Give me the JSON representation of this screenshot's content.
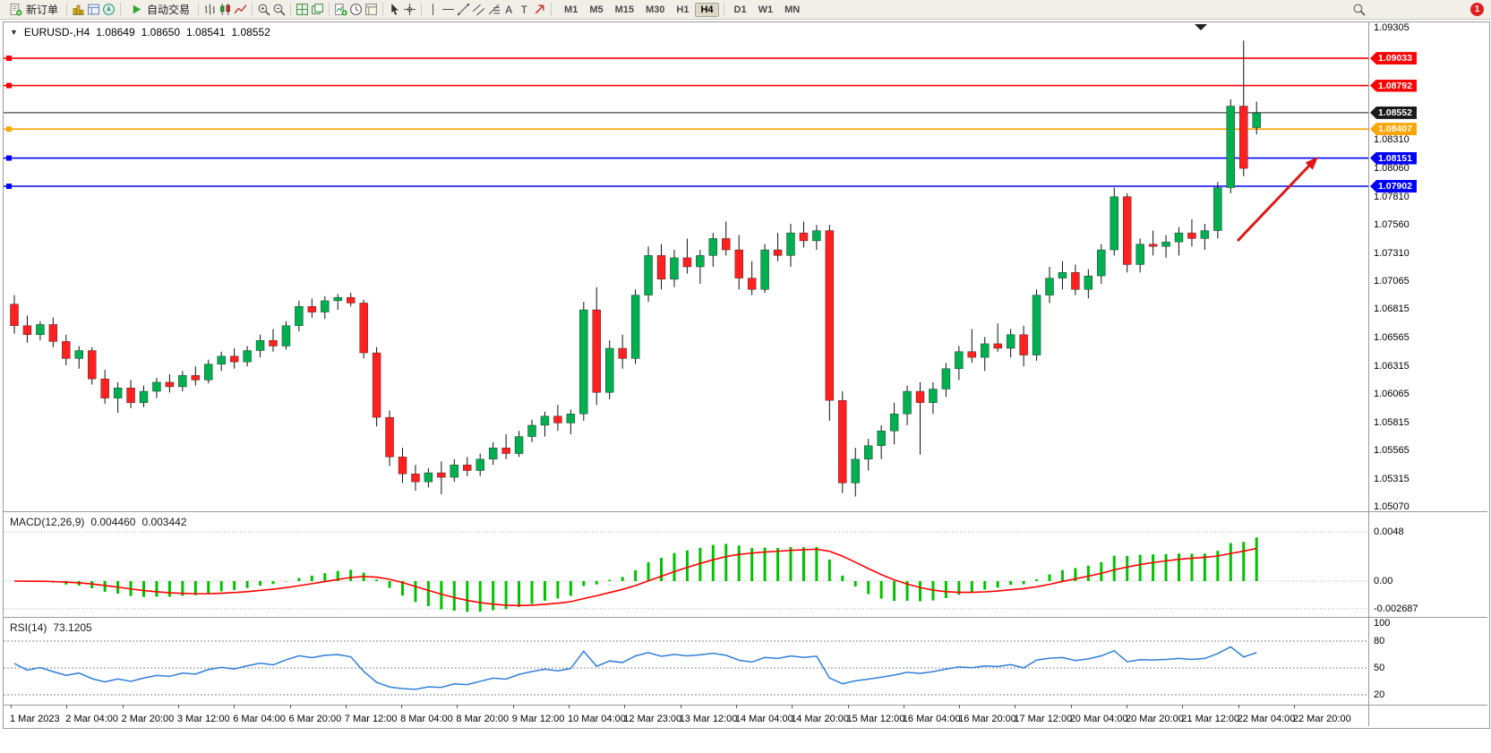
{
  "toolbar": {
    "new_order": "新订单",
    "auto_trading": "自动交易",
    "timeframes": [
      "M1",
      "M5",
      "M15",
      "M30",
      "H1",
      "H4",
      "D1",
      "W1",
      "MN"
    ],
    "active_timeframe": "H4",
    "notification_count": "1",
    "icon_names": [
      "new-order-icon",
      "market-watch-icon",
      "data-window-icon",
      "navigator-icon",
      "play-icon",
      "bar-chart-icon",
      "candlestick-chart-icon",
      "line-chart-icon",
      "zoom-in-icon",
      "zoom-out-icon",
      "tile-windows-icon",
      "cascade-windows-icon",
      "indicators-icon",
      "periods-icon",
      "templates-icon",
      "cursor-icon",
      "crosshair-icon",
      "vertical-line-icon",
      "horizontal-line-icon",
      "trendline-icon",
      "equidistant-channel-icon",
      "fibonacci-icon",
      "text-icon",
      "text-label-icon",
      "arrows-icon",
      "search-icon"
    ]
  },
  "chart": {
    "header": {
      "symbol_period": "EURUSD-,H4",
      "open": "1.08649",
      "high": "1.08650",
      "low": "1.08541",
      "close": "1.08552"
    },
    "price_axis_labels": [
      "1.09305",
      "1.08310",
      "1.08060",
      "1.07810",
      "1.07560",
      "1.07310",
      "1.07065",
      "1.06815",
      "1.06565",
      "1.06315",
      "1.06065",
      "1.05815",
      "1.05565",
      "1.05315",
      "1.05070"
    ],
    "time_axis_labels": [
      "1 Mar 2023",
      "2 Mar 04:00",
      "2 Mar 20:00",
      "3 Mar 12:00",
      "6 Mar 04:00",
      "6 Mar 20:00",
      "7 Mar 12:00",
      "8 Mar 04:00",
      "8 Mar 20:00",
      "9 Mar 12:00",
      "10 Mar 04:00",
      "12 Mar 23:00",
      "13 Mar 12:00",
      "14 Mar 04:00",
      "14 Mar 20:00",
      "15 Mar 12:00",
      "16 Mar 04:00",
      "16 Mar 20:00",
      "17 Mar 12:00",
      "20 Mar 04:00",
      "20 Mar 20:00",
      "21 Mar 12:00",
      "22 Mar 04:00",
      "22 Mar 20:00"
    ],
    "horizontal_lines": [
      {
        "price": 1.09033,
        "label": "1.09033",
        "color": "#ff0000",
        "type": "resistance"
      },
      {
        "price": 1.08792,
        "label": "1.08792",
        "color": "#ff0000",
        "type": "resistance"
      },
      {
        "price": 1.08552,
        "label": "1.08552",
        "color": "#1a1a1a",
        "type": "bid"
      },
      {
        "price": 1.08407,
        "label": "1.08407",
        "color": "#ffa500",
        "type": "level"
      },
      {
        "price": 1.08151,
        "label": "1.08151",
        "color": "#0000ff",
        "type": "support"
      },
      {
        "price": 1.07902,
        "label": "1.07902",
        "color": "#0000ff",
        "type": "support"
      }
    ]
  },
  "chart_data": {
    "type": "candlestick",
    "title": "EURUSD H4",
    "price_range": [
      1.0503,
      1.0935
    ],
    "colors": {
      "bull": "#00b050",
      "bear": "#ff2020",
      "wick": "#111111"
    },
    "ohlc": [
      [
        1.0686,
        1.0694,
        1.066,
        1.0667
      ],
      [
        1.0667,
        1.0676,
        1.0652,
        1.0659
      ],
      [
        1.0659,
        1.0671,
        1.0654,
        1.0668
      ],
      [
        1.0668,
        1.0674,
        1.0648,
        1.0653
      ],
      [
        1.0653,
        1.0659,
        1.0632,
        1.0638
      ],
      [
        1.0638,
        1.0649,
        1.0629,
        1.0645
      ],
      [
        1.0645,
        1.0648,
        1.0615,
        1.062
      ],
      [
        1.062,
        1.0628,
        1.0598,
        1.0603
      ],
      [
        1.0603,
        1.0617,
        1.059,
        1.0612
      ],
      [
        1.0612,
        1.0619,
        1.0594,
        1.0599
      ],
      [
        1.0599,
        1.0614,
        1.0595,
        1.0609
      ],
      [
        1.0609,
        1.0621,
        1.0603,
        1.0617
      ],
      [
        1.0617,
        1.0624,
        1.0608,
        1.0613
      ],
      [
        1.0613,
        1.0627,
        1.0609,
        1.0623
      ],
      [
        1.0623,
        1.0631,
        1.0614,
        1.0619
      ],
      [
        1.0619,
        1.0637,
        1.0616,
        1.0633
      ],
      [
        1.0633,
        1.0644,
        1.0627,
        1.064
      ],
      [
        1.064,
        1.0647,
        1.0629,
        1.0635
      ],
      [
        1.0635,
        1.0649,
        1.0631,
        1.0645
      ],
      [
        1.0645,
        1.0659,
        1.0639,
        1.0654
      ],
      [
        1.0654,
        1.0664,
        1.0644,
        1.0649
      ],
      [
        1.0649,
        1.0671,
        1.0646,
        1.0667
      ],
      [
        1.0667,
        1.0689,
        1.0662,
        1.0684
      ],
      [
        1.0684,
        1.0691,
        1.0674,
        1.0679
      ],
      [
        1.0679,
        1.0693,
        1.0673,
        1.0689
      ],
      [
        1.0689,
        1.0695,
        1.0681,
        1.0692
      ],
      [
        1.0692,
        1.0696,
        1.0684,
        1.0687
      ],
      [
        1.0687,
        1.069,
        1.0638,
        1.0643
      ],
      [
        1.0643,
        1.0648,
        1.0578,
        1.0586
      ],
      [
        1.0586,
        1.0592,
        1.0543,
        1.0551
      ],
      [
        1.0551,
        1.0559,
        1.0528,
        1.0536
      ],
      [
        1.0536,
        1.0544,
        1.0521,
        1.0529
      ],
      [
        1.0529,
        1.0541,
        1.0524,
        1.0537
      ],
      [
        1.0537,
        1.0547,
        1.0518,
        1.0533
      ],
      [
        1.0533,
        1.0549,
        1.0529,
        1.0544
      ],
      [
        1.0544,
        1.0551,
        1.0534,
        1.0539
      ],
      [
        1.0539,
        1.0554,
        1.0534,
        1.0549
      ],
      [
        1.0549,
        1.0564,
        1.0544,
        1.0559
      ],
      [
        1.0559,
        1.0571,
        1.0549,
        1.0554
      ],
      [
        1.0554,
        1.0574,
        1.0551,
        1.0569
      ],
      [
        1.0569,
        1.0584,
        1.0564,
        1.0579
      ],
      [
        1.0579,
        1.0591,
        1.0569,
        1.0587
      ],
      [
        1.0587,
        1.0597,
        1.0574,
        1.0581
      ],
      [
        1.0581,
        1.0593,
        1.0571,
        1.0589
      ],
      [
        1.0589,
        1.0688,
        1.0583,
        1.0681
      ],
      [
        1.0681,
        1.0701,
        1.0597,
        1.0608
      ],
      [
        1.0608,
        1.0654,
        1.0602,
        1.0647
      ],
      [
        1.0647,
        1.0659,
        1.0629,
        1.0638
      ],
      [
        1.0638,
        1.0699,
        1.0633,
        1.0694
      ],
      [
        1.0694,
        1.0737,
        1.0688,
        1.0729
      ],
      [
        1.0729,
        1.0739,
        1.0699,
        1.0708
      ],
      [
        1.0708,
        1.0734,
        1.0701,
        1.0727
      ],
      [
        1.0727,
        1.0744,
        1.0713,
        1.0719
      ],
      [
        1.0719,
        1.0734,
        1.0704,
        1.0729
      ],
      [
        1.0729,
        1.0749,
        1.0719,
        1.0744
      ],
      [
        1.0744,
        1.0759,
        1.0729,
        1.0734
      ],
      [
        1.0734,
        1.0747,
        1.0699,
        1.0709
      ],
      [
        1.0709,
        1.0724,
        1.0694,
        1.0699
      ],
      [
        1.0699,
        1.0739,
        1.0696,
        1.0734
      ],
      [
        1.0734,
        1.0749,
        1.0724,
        1.0729
      ],
      [
        1.0729,
        1.0757,
        1.0719,
        1.0749
      ],
      [
        1.0749,
        1.0759,
        1.0736,
        1.0742
      ],
      [
        1.0742,
        1.0756,
        1.0734,
        1.0751
      ],
      [
        1.0751,
        1.0756,
        1.0583,
        1.0601
      ],
      [
        1.0601,
        1.0609,
        1.0519,
        1.0528
      ],
      [
        1.0528,
        1.0559,
        1.0516,
        1.0549
      ],
      [
        1.0549,
        1.0567,
        1.0539,
        1.0561
      ],
      [
        1.0561,
        1.0579,
        1.0549,
        1.0574
      ],
      [
        1.0574,
        1.0599,
        1.0562,
        1.0589
      ],
      [
        1.0589,
        1.0614,
        1.0579,
        1.0609
      ],
      [
        1.0609,
        1.0617,
        1.0553,
        1.0599
      ],
      [
        1.0599,
        1.0617,
        1.0589,
        1.0611
      ],
      [
        1.0611,
        1.0634,
        1.0604,
        1.0629
      ],
      [
        1.0629,
        1.0649,
        1.0619,
        1.0644
      ],
      [
        1.0644,
        1.0664,
        1.0634,
        1.0639
      ],
      [
        1.0639,
        1.0657,
        1.0627,
        1.0651
      ],
      [
        1.0651,
        1.0669,
        1.0644,
        1.0647
      ],
      [
        1.0647,
        1.0664,
        1.0639,
        1.0659
      ],
      [
        1.0659,
        1.0667,
        1.0631,
        1.0641
      ],
      [
        1.0641,
        1.0699,
        1.0636,
        1.0694
      ],
      [
        1.0694,
        1.0719,
        1.0687,
        1.0709
      ],
      [
        1.0709,
        1.0724,
        1.0699,
        1.0714
      ],
      [
        1.0714,
        1.0721,
        1.0694,
        1.0699
      ],
      [
        1.0699,
        1.0717,
        1.0691,
        1.0711
      ],
      [
        1.0711,
        1.0739,
        1.0704,
        1.0734
      ],
      [
        1.0734,
        1.0789,
        1.0729,
        1.0781
      ],
      [
        1.0781,
        1.0784,
        1.0714,
        1.0721
      ],
      [
        1.0721,
        1.0744,
        1.0714,
        1.0739
      ],
      [
        1.0739,
        1.0751,
        1.0729,
        1.0737
      ],
      [
        1.0737,
        1.0747,
        1.0727,
        1.0741
      ],
      [
        1.0741,
        1.0754,
        1.0729,
        1.0749
      ],
      [
        1.0749,
        1.0761,
        1.0737,
        1.0744
      ],
      [
        1.0744,
        1.0757,
        1.0734,
        1.0751
      ],
      [
        1.0751,
        1.0794,
        1.0744,
        1.0789
      ],
      [
        1.0789,
        1.0867,
        1.0784,
        1.0861
      ],
      [
        1.0861,
        1.0919,
        1.0799,
        1.0806
      ],
      [
        1.0842,
        1.0865,
        1.0836,
        1.0855
      ]
    ],
    "indicators": [
      {
        "name": "MACD",
        "label": "MACD(12,26,9)",
        "params": [
          12,
          26,
          9
        ],
        "values_text": [
          "0.004460",
          "0.003442"
        ],
        "scale_labels": [
          {
            "v": 0.0048,
            "t": "0.0048"
          },
          {
            "v": 0,
            "t": "0.00"
          },
          {
            "v": -0.002687,
            "t": "-0.002687"
          }
        ],
        "histogram_color": "#00c300",
        "signal_color": "#ff0000"
      },
      {
        "name": "RSI",
        "label": "RSI(14)",
        "params": [
          14
        ],
        "value_text": "73.1205",
        "levels": [
          80,
          50,
          20
        ],
        "scale_labels": [
          {
            "v": 100,
            "t": "100"
          },
          {
            "v": 80,
            "t": "80"
          },
          {
            "v": 50,
            "t": "50"
          },
          {
            "v": 20,
            "t": "20"
          }
        ],
        "line_color": "#2e7fd8"
      }
    ],
    "annotation_arrow": {
      "color": "#e01515",
      "direction": "up-right"
    }
  }
}
